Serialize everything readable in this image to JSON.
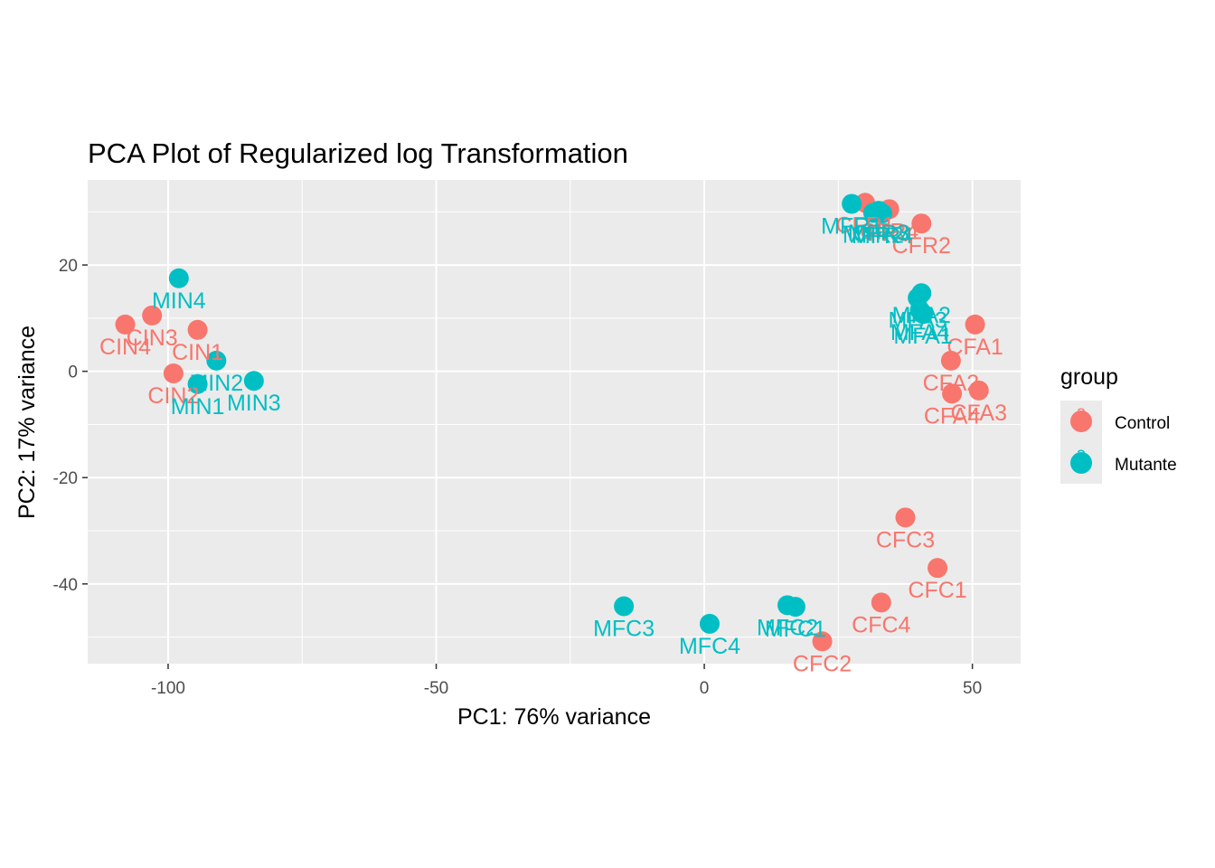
{
  "chart_data": {
    "type": "scatter",
    "title": "PCA Plot of Regularized log  Transformation",
    "xlabel": "PC1: 76% variance",
    "ylabel": "PC2: 17% variance",
    "xlim": [
      -115,
      59
    ],
    "ylim": [
      -55,
      36
    ],
    "x_ticks": [
      -100,
      -50,
      0,
      50
    ],
    "y_ticks": [
      -40,
      -20,
      0,
      20
    ],
    "x_tick_labels": [
      "-100",
      "-50",
      "0",
      "50"
    ],
    "y_tick_labels": [
      "-40",
      "-20",
      "0",
      "20"
    ],
    "grid": true,
    "legend": {
      "title": "group",
      "position": "right",
      "key_glyph": "a",
      "entries": [
        {
          "label": "Control",
          "color": "#F8766D"
        },
        {
          "label": "Mutante",
          "color": "#00BFC4"
        }
      ]
    },
    "series": [
      {
        "name": "Control",
        "color": "#F8766D",
        "points": [
          {
            "label": "CIN4",
            "x": -108,
            "y": 8.8
          },
          {
            "label": "CIN3",
            "x": -103,
            "y": 10.5
          },
          {
            "label": "CIN1",
            "x": -94.5,
            "y": 7.8
          },
          {
            "label": "CIN2",
            "x": -99,
            "y": -0.4
          },
          {
            "label": "CFR1",
            "x": 30,
            "y": 31.7
          },
          {
            "label": "CFR3",
            "x": 33,
            "y": 30.1
          },
          {
            "label": "CFR4",
            "x": 34.5,
            "y": 30.5
          },
          {
            "label": "CFR2",
            "x": 40.5,
            "y": 27.8
          },
          {
            "label": "CFA1",
            "x": 50.5,
            "y": 8.8
          },
          {
            "label": "CFA2",
            "x": 46,
            "y": 2
          },
          {
            "label": "CFA4",
            "x": 46.2,
            "y": -4.2
          },
          {
            "label": "CFA3",
            "x": 51.2,
            "y": -3.6
          },
          {
            "label": "CFC3",
            "x": 37.5,
            "y": -27.5
          },
          {
            "label": "CFC1",
            "x": 43.5,
            "y": -37
          },
          {
            "label": "CFC4",
            "x": 33,
            "y": -43.5
          },
          {
            "label": "CFC2",
            "x": 22,
            "y": -50.8
          }
        ]
      },
      {
        "name": "Mutante",
        "color": "#00BFC4",
        "points": [
          {
            "label": "MIN4",
            "x": -98,
            "y": 17.5
          },
          {
            "label": "MIN2",
            "x": -91,
            "y": 2
          },
          {
            "label": "MIN1",
            "x": -94.5,
            "y": -2.4
          },
          {
            "label": "MIN3",
            "x": -84,
            "y": -1.8
          },
          {
            "label": "MFR1",
            "x": 27.5,
            "y": 31.5
          },
          {
            "label": "MFR2",
            "x": 31.5,
            "y": 29.8
          },
          {
            "label": "MFR3",
            "x": 32.5,
            "y": 30.2
          },
          {
            "label": "MFR4",
            "x": 33.2,
            "y": 29.7
          },
          {
            "label": "MFA2",
            "x": 40.5,
            "y": 14.7
          },
          {
            "label": "MFA3",
            "x": 39.8,
            "y": 13.8
          },
          {
            "label": "MFA4",
            "x": 40.2,
            "y": 11.5
          },
          {
            "label": "MFA1",
            "x": 40.8,
            "y": 10.8
          },
          {
            "label": "MFC3",
            "x": -15,
            "y": -44.2
          },
          {
            "label": "MFC4",
            "x": 1,
            "y": -47.5
          },
          {
            "label": "MFC2",
            "x": 15.5,
            "y": -44
          },
          {
            "label": "MFC1",
            "x": 17,
            "y": -44.3
          }
        ]
      }
    ]
  }
}
